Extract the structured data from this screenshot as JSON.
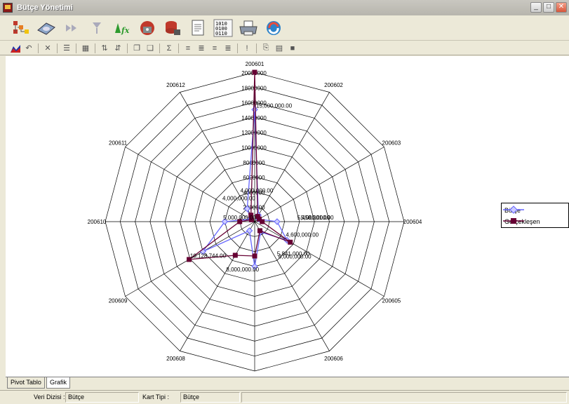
{
  "window": {
    "title": "Bütçe Yönetimi"
  },
  "title_buttons": [
    "_",
    "□",
    "✕"
  ],
  "toolbar_icons": [
    "hierarchy-icon",
    "disk-icon",
    "forward-icon",
    "filter-icon",
    "function-icon",
    "phone-icon",
    "database-icon",
    "report-icon",
    "binary-icon",
    "printer-icon",
    "refresh-icon"
  ],
  "toolbar2_icons": [
    "chart-type-icon",
    "undo-icon",
    "delete-icon",
    "list-icon",
    "grid-icon",
    "sort-asc-icon",
    "sort-desc-icon",
    "copy-icon",
    "paste-icon",
    "sum-icon",
    "field-a-icon",
    "field-b-icon",
    "field-c-icon",
    "field-d-icon",
    "info-icon",
    "export-icon",
    "page-icon",
    "flag-icon"
  ],
  "tabs": [
    {
      "label": "Pivot Tablo",
      "active": false
    },
    {
      "label": "Grafik",
      "active": true
    }
  ],
  "status": {
    "series_label": "Veri Dizisi :",
    "series_value": "Bütçe",
    "chart_type_label": "Kart Tipi :",
    "chart_type_value": "Bütçe"
  },
  "colors": {
    "butce": "#6666ff",
    "gerceklesen": "#660033"
  },
  "chart_data": {
    "type": "radar",
    "categories": [
      "200601",
      "200602",
      "200603",
      "200604",
      "200605",
      "200606",
      "200607",
      "200608",
      "200609",
      "200610",
      "200611",
      "200612"
    ],
    "axis_ticks": [
      "2000000",
      "4000000",
      "6000000",
      "8000000",
      "10000000",
      "12000000",
      "14000000",
      "16000000",
      "18000000",
      "20000000"
    ],
    "rmax": 20000000,
    "grid": true,
    "legend_position": "right",
    "series": [
      {
        "name": "Bütçe",
        "values": [
          15000000,
          1000000,
          650000,
          3000000,
          5000000,
          1600000,
          6000000,
          1400000,
          8000000,
          4000000,
          650000,
          2000000
        ]
      },
      {
        "name": "Gerçekleşen",
        "values": [
          20000000,
          800000,
          700000,
          1000000,
          5500000,
          1400000,
          4600000,
          5200000,
          10130000,
          2000000,
          500000,
          1000000
        ]
      }
    ],
    "data_labels": [
      "20,000,000.00",
      "15,000,000.00",
      "4,000,000.00",
      "5,000,000.00",
      "5,458,301.00",
      "4,600,000.00",
      "6,000,000.00",
      "5,841,000.00",
      "8,000,000.00",
      "10,128,744.00",
      "4,000,000.00",
      "5,000,000.00"
    ]
  }
}
